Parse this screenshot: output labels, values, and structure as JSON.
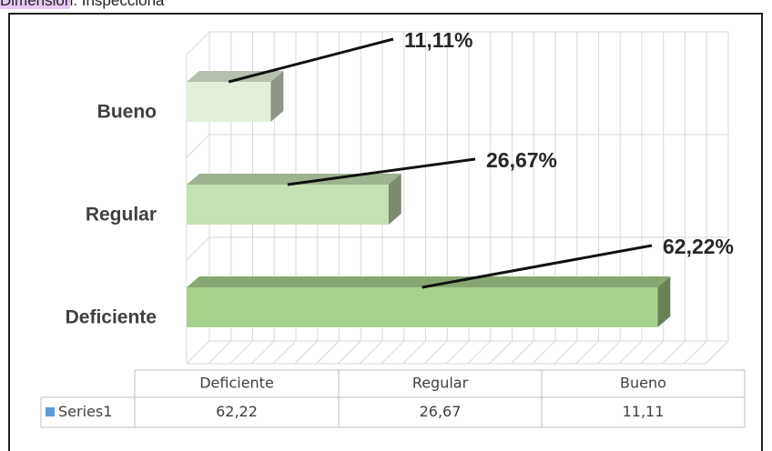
{
  "caption": {
    "highlight": "Dimensión",
    "rest": ": Inspecciona"
  },
  "chart_data": {
    "type": "bar3d",
    "categories": [
      "Deficiente",
      "Regular",
      "Bueno"
    ],
    "values": [
      62.22,
      26.67,
      11.11
    ],
    "value_labels": [
      "62,22%",
      "26,67%",
      "11,11%"
    ],
    "colors": [
      "#a9d18e",
      "#c5e0b4",
      "#e2f0d9"
    ],
    "xlim": [
      0,
      70
    ],
    "table": {
      "series": "Series1",
      "color": "#5b9bd5",
      "cells": [
        "62,22",
        "26,67",
        "11,11"
      ]
    }
  }
}
